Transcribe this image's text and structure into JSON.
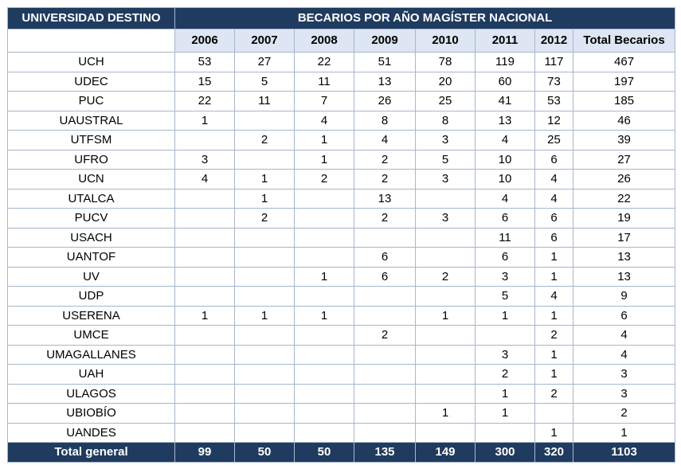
{
  "table": {
    "header_university": "UNIVERSIDAD DESTINO",
    "header_group": "BECARIOS POR AÑO MAGÍSTER NACIONAL",
    "years": [
      "2006",
      "2007",
      "2008",
      "2009",
      "2010",
      "2011",
      "2012"
    ],
    "total_header": "Total Becarios",
    "rows": [
      {
        "name": "UCH",
        "values": [
          "53",
          "27",
          "22",
          "51",
          "78",
          "119",
          "117"
        ],
        "total": "467"
      },
      {
        "name": "UDEC",
        "values": [
          "15",
          "5",
          "11",
          "13",
          "20",
          "60",
          "73"
        ],
        "total": "197"
      },
      {
        "name": "PUC",
        "values": [
          "22",
          "11",
          "7",
          "26",
          "25",
          "41",
          "53"
        ],
        "total": "185"
      },
      {
        "name": "UAUSTRAL",
        "values": [
          "1",
          "",
          "4",
          "8",
          "8",
          "13",
          "12"
        ],
        "total": "46"
      },
      {
        "name": "UTFSM",
        "values": [
          "",
          "2",
          "1",
          "4",
          "3",
          "4",
          "25"
        ],
        "total": "39"
      },
      {
        "name": "UFRO",
        "values": [
          "3",
          "",
          "1",
          "2",
          "5",
          "10",
          "6"
        ],
        "total": "27"
      },
      {
        "name": "UCN",
        "values": [
          "4",
          "1",
          "2",
          "2",
          "3",
          "10",
          "4"
        ],
        "total": "26"
      },
      {
        "name": "UTALCA",
        "values": [
          "",
          "1",
          "",
          "13",
          "",
          "4",
          "4"
        ],
        "total": "22"
      },
      {
        "name": "PUCV",
        "values": [
          "",
          "2",
          "",
          "2",
          "3",
          "6",
          "6"
        ],
        "total": "19"
      },
      {
        "name": "USACH",
        "values": [
          "",
          "",
          "",
          "",
          "",
          "11",
          "6"
        ],
        "total": "17"
      },
      {
        "name": "UANTOF",
        "values": [
          "",
          "",
          "",
          "6",
          "",
          "6",
          "1"
        ],
        "total": "13"
      },
      {
        "name": "UV",
        "values": [
          "",
          "",
          "1",
          "6",
          "2",
          "3",
          "1"
        ],
        "total": "13"
      },
      {
        "name": "UDP",
        "values": [
          "",
          "",
          "",
          "",
          "",
          "5",
          "4"
        ],
        "total": "9"
      },
      {
        "name": "USERENA",
        "values": [
          "1",
          "1",
          "1",
          "",
          "1",
          "1",
          "1"
        ],
        "total": "6"
      },
      {
        "name": "UMCE",
        "values": [
          "",
          "",
          "",
          "2",
          "",
          "",
          "2"
        ],
        "total": "4"
      },
      {
        "name": "UMAGALLANES",
        "values": [
          "",
          "",
          "",
          "",
          "",
          "3",
          "1"
        ],
        "total": "4"
      },
      {
        "name": "UAH",
        "values": [
          "",
          "",
          "",
          "",
          "",
          "2",
          "1"
        ],
        "total": "3"
      },
      {
        "name": "ULAGOS",
        "values": [
          "",
          "",
          "",
          "",
          "",
          "1",
          "2"
        ],
        "total": "3"
      },
      {
        "name": "UBIOBÍO",
        "values": [
          "",
          "",
          "",
          "",
          "1",
          "1",
          ""
        ],
        "total": "2"
      },
      {
        "name": "UANDES",
        "values": [
          "",
          "",
          "",
          "",
          "",
          "",
          "1"
        ],
        "total": "1"
      }
    ],
    "footer": {
      "label": "Total general",
      "values": [
        "99",
        "50",
        "50",
        "135",
        "149",
        "300",
        "320"
      ],
      "total": "1103"
    }
  },
  "colors": {
    "header_bg": "#1f3b5f",
    "subheader_bg": "#dde6f2",
    "border": "#a7b7cc"
  }
}
